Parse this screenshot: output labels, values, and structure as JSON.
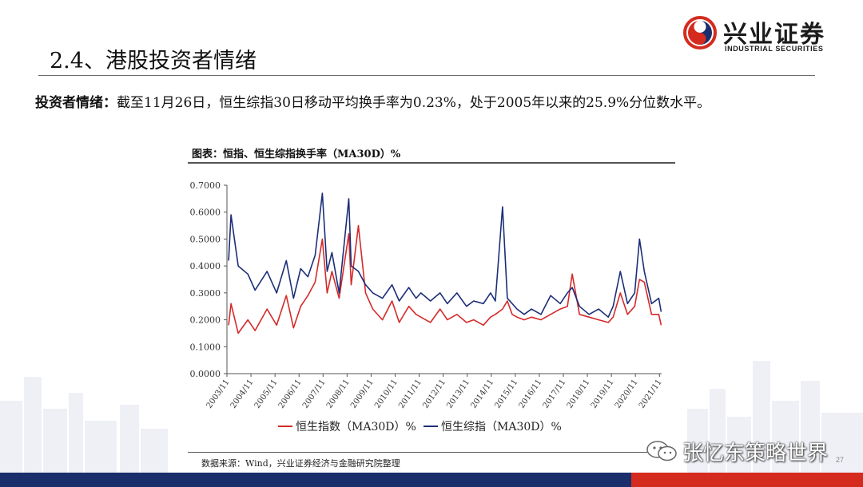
{
  "logo": {
    "cn": "兴业证券",
    "en": "INDUSTRIAL SECURITIES",
    "colors": {
      "red": "#d52b1e",
      "navy": "#1a2e6c"
    }
  },
  "page_title": "2.4、港股投资者情绪",
  "summary": {
    "label": "投资者情绪：",
    "text": "截至11月26日，恒生综指30日移动平均换手率为0.23%，处于2005年以来的25.9%分位数水平。"
  },
  "chart_title": "图表：恒指、恒生综指换手率（MA30D）%",
  "source": "数据来源：Wind，兴业证券经济与金融研究院整理",
  "watermark": "张忆东策略世界",
  "page_number": "27",
  "chart_data": {
    "type": "line",
    "title": "",
    "xlabel": "",
    "ylabel": "",
    "ylim": [
      0,
      0.7
    ],
    "y_ticks": [
      "0.0000",
      "0.1000",
      "0.2000",
      "0.3000",
      "0.4000",
      "0.5000",
      "0.6000",
      "0.7000"
    ],
    "x_ticks": [
      "2003/11",
      "2004/11",
      "2005/11",
      "2006/11",
      "2007/11",
      "2008/11",
      "2009/11",
      "2010/11",
      "2011/11",
      "2012/11",
      "2013/11",
      "2014/11",
      "2015/11",
      "2016/11",
      "2017/11",
      "2018/11",
      "2019/11",
      "2020/11",
      "2021/11"
    ],
    "grid": false,
    "legend": "bottom",
    "x": [
      2003.9,
      2004.0,
      2004.3,
      2004.7,
      2005.0,
      2005.5,
      2005.9,
      2006.3,
      2006.6,
      2006.9,
      2007.2,
      2007.5,
      2007.8,
      2008.0,
      2008.2,
      2008.5,
      2008.9,
      2009.0,
      2009.3,
      2009.6,
      2009.9,
      2010.3,
      2010.7,
      2011.0,
      2011.4,
      2011.7,
      2011.9,
      2012.3,
      2012.7,
      2013.0,
      2013.4,
      2013.8,
      2014.1,
      2014.5,
      2014.8,
      2015.0,
      2015.3,
      2015.5,
      2015.7,
      2015.9,
      2016.2,
      2016.5,
      2016.9,
      2017.3,
      2017.7,
      2018.0,
      2018.2,
      2018.5,
      2018.9,
      2019.3,
      2019.7,
      2019.9,
      2020.2,
      2020.5,
      2020.8,
      2021.0,
      2021.2,
      2021.5,
      2021.8,
      2021.9
    ],
    "series": [
      {
        "name": "恒生指数（MA30D）%",
        "color": "#d42a2a",
        "values": [
          0.18,
          0.26,
          0.15,
          0.2,
          0.16,
          0.24,
          0.18,
          0.29,
          0.17,
          0.25,
          0.29,
          0.34,
          0.5,
          0.3,
          0.38,
          0.28,
          0.52,
          0.33,
          0.55,
          0.3,
          0.24,
          0.2,
          0.27,
          0.19,
          0.25,
          0.22,
          0.21,
          0.19,
          0.24,
          0.2,
          0.22,
          0.19,
          0.2,
          0.18,
          0.21,
          0.22,
          0.24,
          0.27,
          0.22,
          0.21,
          0.2,
          0.21,
          0.2,
          0.22,
          0.24,
          0.25,
          0.37,
          0.22,
          0.21,
          0.2,
          0.19,
          0.21,
          0.3,
          0.22,
          0.25,
          0.35,
          0.34,
          0.22,
          0.22,
          0.18
        ]
      },
      {
        "name": "恒生综指（MA30D）%",
        "color": "#1c2e78",
        "values": [
          0.42,
          0.59,
          0.4,
          0.37,
          0.31,
          0.38,
          0.3,
          0.42,
          0.28,
          0.39,
          0.36,
          0.44,
          0.67,
          0.38,
          0.45,
          0.3,
          0.65,
          0.4,
          0.38,
          0.33,
          0.3,
          0.28,
          0.33,
          0.27,
          0.32,
          0.28,
          0.3,
          0.27,
          0.3,
          0.26,
          0.3,
          0.25,
          0.27,
          0.26,
          0.3,
          0.27,
          0.62,
          0.28,
          0.26,
          0.24,
          0.22,
          0.24,
          0.22,
          0.29,
          0.26,
          0.3,
          0.32,
          0.25,
          0.22,
          0.24,
          0.21,
          0.25,
          0.38,
          0.26,
          0.3,
          0.5,
          0.38,
          0.26,
          0.28,
          0.23
        ]
      }
    ]
  }
}
